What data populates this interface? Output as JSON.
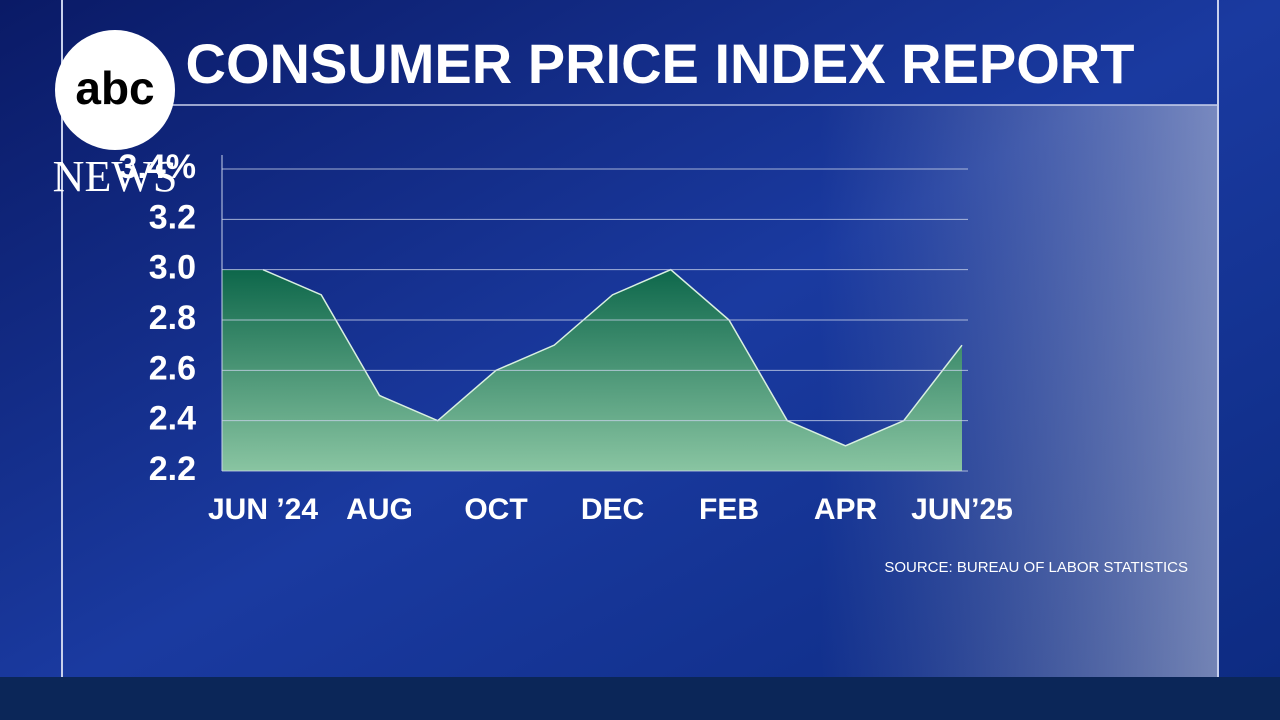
{
  "logo": {
    "top": "abc",
    "bottom": "NEWS"
  },
  "chart_data": {
    "type": "area",
    "title": "CONSUMER PRICE INDEX REPORT",
    "source": "SOURCE: BUREAU OF LABOR STATISTICS",
    "categories": [
      "JUN ’24",
      null,
      "AUG",
      null,
      "OCT",
      null,
      "DEC",
      null,
      "FEB",
      null,
      "APR",
      null,
      "JUN’25"
    ],
    "values": [
      3.0,
      2.9,
      2.5,
      2.4,
      2.6,
      2.7,
      2.9,
      3.0,
      2.8,
      2.4,
      2.3,
      2.4,
      2.7
    ],
    "color": "#2f9467",
    "ylim": [
      2.2,
      3.4
    ],
    "yticks": [
      2.2,
      2.4,
      2.6,
      2.8,
      {
        "value": 3.0,
        "label": "3.0"
      },
      3.2,
      {
        "value": 3.4,
        "label": "3.4%"
      }
    ],
    "grid": true
  }
}
